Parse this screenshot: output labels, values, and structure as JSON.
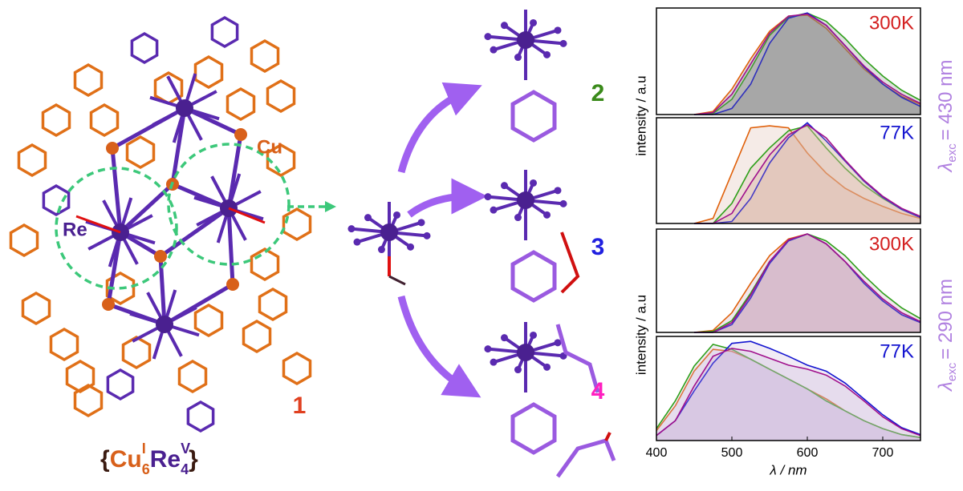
{
  "figure": {
    "atom_labels": {
      "re": "Re",
      "cu": "Cu"
    },
    "compounds": [
      "1",
      "2",
      "3",
      "4"
    ],
    "formula": [
      "{",
      "Cu",
      "I",
      "6",
      "Re",
      "V",
      "4",
      "}"
    ],
    "groups": [
      {
        "ylabel": "intensity / a.u",
        "excitation": {
          "symbol": "λ",
          "subscript": "exc",
          "text": "= 430 nm"
        }
      },
      {
        "ylabel": "intensity / a.u",
        "excitation": {
          "symbol": "λ",
          "subscript": "exc",
          "text": "= 290 nm"
        }
      }
    ]
  },
  "chart_data": [
    {
      "type": "line",
      "label": "300K",
      "label_color": "#d42020",
      "area_color": "#808080",
      "xlim": [
        400,
        750
      ],
      "ylim": [
        0,
        1.05
      ],
      "x": [
        450,
        475,
        500,
        525,
        550,
        575,
        600,
        625,
        650,
        675,
        700,
        725,
        750
      ],
      "series": [
        {
          "color": "#e0600a",
          "values": [
            0,
            0.03,
            0.25,
            0.55,
            0.82,
            0.97,
            0.98,
            0.85,
            0.65,
            0.45,
            0.3,
            0.18,
            0.1
          ]
        },
        {
          "color": "#2ea01a",
          "values": [
            0,
            0.01,
            0.15,
            0.45,
            0.78,
            0.96,
            1.0,
            0.92,
            0.75,
            0.55,
            0.38,
            0.24,
            0.14
          ]
        },
        {
          "color": "#1414d0",
          "values": [
            0,
            0,
            0.06,
            0.3,
            0.7,
            0.95,
            1.0,
            0.88,
            0.68,
            0.47,
            0.3,
            0.17,
            0.08
          ]
        },
        {
          "color": "#a0108c",
          "values": [
            0,
            0.02,
            0.2,
            0.5,
            0.8,
            0.97,
            0.99,
            0.88,
            0.68,
            0.48,
            0.32,
            0.2,
            0.11
          ]
        }
      ]
    },
    {
      "type": "line",
      "label": "77K",
      "label_color": "#1414d0",
      "area_color": "#d8b0a0",
      "xlim": [
        400,
        750
      ],
      "ylim": [
        0,
        1.05
      ],
      "x": [
        450,
        475,
        500,
        525,
        550,
        575,
        600,
        625,
        650,
        675,
        700,
        725,
        750
      ],
      "series": [
        {
          "color": "#e0600a",
          "values": [
            0,
            0.05,
            0.5,
            0.95,
            0.97,
            0.95,
            0.7,
            0.5,
            0.35,
            0.25,
            0.17,
            0.1,
            0.05
          ]
        },
        {
          "color": "#2ea01a",
          "values": [
            0,
            0,
            0.2,
            0.55,
            0.75,
            0.92,
            0.97,
            0.75,
            0.55,
            0.38,
            0.25,
            0.14,
            0.06
          ]
        },
        {
          "color": "#1414d0",
          "values": [
            0,
            0,
            0.02,
            0.25,
            0.6,
            0.85,
            1.0,
            0.82,
            0.62,
            0.42,
            0.26,
            0.14,
            0.06
          ]
        },
        {
          "color": "#a0108c",
          "values": [
            0,
            0,
            0.1,
            0.4,
            0.68,
            0.88,
            0.98,
            0.85,
            0.63,
            0.43,
            0.27,
            0.15,
            0.07
          ]
        }
      ]
    },
    {
      "type": "line",
      "label": "300K",
      "label_color": "#d42020",
      "area_color": "#c8a0b8",
      "xlim": [
        400,
        750
      ],
      "ylim": [
        0,
        1.05
      ],
      "x": [
        450,
        475,
        500,
        525,
        550,
        575,
        600,
        625,
        650,
        675,
        700,
        725,
        750
      ],
      "series": [
        {
          "color": "#e0600a",
          "values": [
            0,
            0.02,
            0.2,
            0.5,
            0.78,
            0.95,
            1.0,
            0.9,
            0.72,
            0.5,
            0.32,
            0.18,
            0.1
          ]
        },
        {
          "color": "#2ea01a",
          "values": [
            0,
            0.01,
            0.12,
            0.4,
            0.72,
            0.93,
            1.0,
            0.93,
            0.78,
            0.58,
            0.4,
            0.25,
            0.14
          ]
        },
        {
          "color": "#1414d0",
          "values": [
            0,
            0,
            0.08,
            0.35,
            0.7,
            0.93,
            1.0,
            0.9,
            0.72,
            0.5,
            0.32,
            0.18,
            0.1
          ]
        },
        {
          "color": "#a0108c",
          "values": [
            0,
            0,
            0.1,
            0.38,
            0.72,
            0.94,
            1.0,
            0.9,
            0.72,
            0.52,
            0.34,
            0.2,
            0.11
          ]
        }
      ]
    },
    {
      "type": "line",
      "label": "77K",
      "label_color": "#1414d0",
      "area_color": "#c8b0d8",
      "xlim": [
        400,
        750
      ],
      "ylim": [
        0,
        1.05
      ],
      "xticks": [
        400,
        500,
        600,
        700
      ],
      "xlabel": "λ / nm",
      "x": [
        400,
        425,
        450,
        475,
        500,
        525,
        550,
        575,
        600,
        625,
        650,
        675,
        700,
        725,
        750
      ],
      "series": [
        {
          "color": "#e0600a",
          "values": [
            0.1,
            0.35,
            0.7,
            0.92,
            0.9,
            0.82,
            0.72,
            0.62,
            0.52,
            0.42,
            0.3,
            0.2,
            0.12,
            0.06,
            0.03
          ]
        },
        {
          "color": "#2ea01a",
          "values": [
            0.12,
            0.4,
            0.75,
            0.97,
            0.92,
            0.82,
            0.72,
            0.62,
            0.52,
            0.4,
            0.3,
            0.2,
            0.12,
            0.06,
            0.03
          ]
        },
        {
          "color": "#1414d0",
          "values": [
            0.05,
            0.2,
            0.5,
            0.78,
            0.98,
            1.0,
            0.93,
            0.85,
            0.76,
            0.7,
            0.58,
            0.42,
            0.26,
            0.13,
            0.06
          ]
        },
        {
          "color": "#a0108c",
          "values": [
            0.05,
            0.2,
            0.55,
            0.85,
            0.93,
            0.9,
            0.83,
            0.76,
            0.72,
            0.66,
            0.55,
            0.4,
            0.24,
            0.12,
            0.05
          ]
        }
      ]
    }
  ]
}
